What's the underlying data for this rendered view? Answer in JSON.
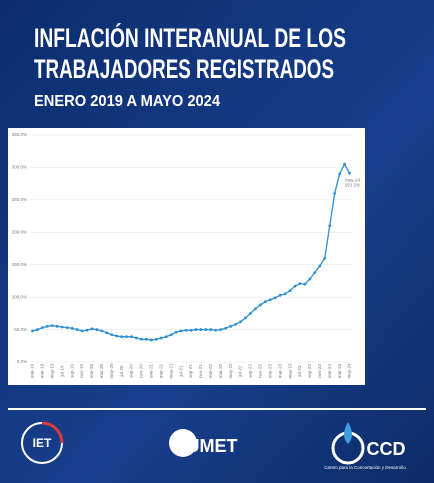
{
  "chart_data": {
    "type": "line",
    "title": [
      "INFLACIÓN INTERANUAL DE LOS",
      "TRABAJADORES REGISTRADOS"
    ],
    "subtitle": "ENERO 2019 A MAYO 2024",
    "categories": [
      "ene-19",
      null,
      "mar-19",
      null,
      "may-19",
      null,
      "jul-19",
      null,
      "sep-19",
      null,
      "nov-19",
      null,
      "ene-20",
      null,
      "mar-20",
      null,
      "may-20",
      null,
      "jul-20",
      null,
      "sep-20",
      null,
      "nov-20",
      null,
      "ene-21",
      null,
      "mar-21",
      null,
      "may-21",
      null,
      "jul-21",
      null,
      "sep-21",
      null,
      "nov-21",
      null,
      "ene-22",
      null,
      "mar-22",
      null,
      "may-22",
      null,
      "jul-22",
      null,
      "sep-22",
      null,
      "nov-22",
      null,
      "ene-23",
      null,
      "mar-23",
      null,
      "may-23",
      null,
      "jul-23",
      null,
      "sep-23",
      null,
      "nov-23",
      null,
      "ene-24",
      null,
      "mar-24",
      null,
      "may-24"
    ],
    "series": [
      {
        "name": "Inflación interanual",
        "color": "#2f8fd0",
        "values": [
          48,
          50,
          53,
          55,
          56,
          55,
          54,
          53,
          52,
          50,
          48,
          49,
          51,
          50,
          48,
          45,
          42,
          40,
          39,
          39,
          39,
          37,
          35,
          35,
          34,
          35,
          37,
          39,
          42,
          46,
          48,
          49,
          49,
          50,
          50,
          50,
          50,
          49,
          50,
          52,
          55,
          58,
          62,
          68,
          75,
          82,
          88,
          93,
          96,
          99,
          103,
          105,
          110,
          117,
          121,
          120,
          128,
          138,
          148,
          160,
          210,
          260,
          290,
          305,
          291.2
        ],
        "value_labels": [
          null,
          null,
          null,
          null,
          null,
          null,
          null,
          null,
          null,
          null,
          null,
          null,
          null,
          null,
          null,
          null,
          null,
          null,
          null,
          null,
          null,
          null,
          null,
          null,
          null,
          null,
          null,
          null,
          null,
          null,
          null,
          null,
          null,
          null,
          null,
          null,
          null,
          null,
          null,
          null,
          null,
          null,
          null,
          null,
          null,
          null,
          null,
          null,
          null,
          null,
          null,
          null,
          null,
          null,
          null,
          null,
          null,
          null,
          null,
          null,
          null,
          null,
          null,
          null,
          "291.2%"
        ]
      }
    ],
    "ylim": [
      0,
      350
    ],
    "yticks": [
      {
        "value": 0,
        "label": "0.0%"
      },
      {
        "value": 50,
        "label": "50.0%"
      },
      {
        "value": 100,
        "label": "100.0%"
      },
      {
        "value": 150,
        "label": "150.0%"
      },
      {
        "value": 200,
        "label": "200.0%"
      },
      {
        "value": 250,
        "label": "250.0%"
      },
      {
        "value": 300,
        "label": "300.0%"
      },
      {
        "value": 350,
        "label": "350.0%"
      }
    ],
    "grid": true
  },
  "logos": {
    "left": "IET",
    "center": "UMET",
    "right": "CCD",
    "right_caption": "Centro para la Concertación y Desarrollo"
  }
}
